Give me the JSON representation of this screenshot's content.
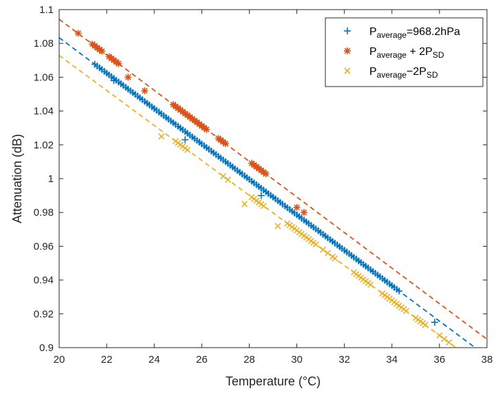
{
  "chart_data": {
    "type": "scatter",
    "title": "",
    "xlabel": "Temperature (°C)",
    "ylabel": "Attenuation (dB)",
    "xlim": [
      20,
      38
    ],
    "ylim": [
      0.9,
      1.1
    ],
    "xticks": [
      "20",
      "22",
      "24",
      "26",
      "28",
      "30",
      "32",
      "34",
      "36",
      "38"
    ],
    "yticks": [
      "0.9",
      "0.92",
      "0.94",
      "0.96",
      "0.98",
      "1",
      "1.02",
      "1.04",
      "1.06",
      "1.08",
      "1.1"
    ],
    "legend_position": "top-right",
    "series": [
      {
        "name": "P_average=968.2hPa",
        "legend": {
          "main": "P",
          "sub": "average",
          "rest": "=968.2hPa",
          "sub2": "",
          "rest2": ""
        },
        "color": "#0072BD",
        "marker": "plus",
        "fit": {
          "x0": 20,
          "y0": 1.0834,
          "x1": 37.5,
          "y1": 0.9
        },
        "segments": [
          [
            21.5,
            34.3,
            0.1
          ]
        ],
        "points": [
          [
            22.3,
            1.058
          ],
          [
            25.3,
            1.023
          ],
          [
            28.5,
            0.99
          ],
          [
            35.8,
            0.915
          ]
        ]
      },
      {
        "name": "P_average + 2P_SD",
        "legend": {
          "main": "P",
          "sub": "average",
          "rest": " + 2P",
          "sub2": "SD",
          "rest2": ""
        },
        "color": "#D95319",
        "marker": "asterisk",
        "fit": {
          "x0": 20,
          "y0": 1.0943,
          "x1": 38,
          "y1": 0.905
        },
        "segments": [
          [
            21.4,
            21.8,
            0.1
          ],
          [
            22.1,
            22.5,
            0.1
          ],
          [
            24.8,
            26.2,
            0.1
          ],
          [
            26.7,
            27.0,
            0.1
          ],
          [
            28.1,
            28.7,
            0.1
          ]
        ],
        "points": [
          [
            20.8,
            1.086
          ],
          [
            22.9,
            1.06
          ],
          [
            23.6,
            1.052
          ],
          [
            30.0,
            0.983
          ],
          [
            30.3,
            0.98
          ]
        ]
      },
      {
        "name": "P_average−2P_SD",
        "legend": {
          "main": "P",
          "sub": "average",
          "rest": "−2P",
          "sub2": "SD",
          "rest2": ""
        },
        "color": "#EDB120",
        "marker": "x",
        "fit": {
          "x0": 20,
          "y0": 1.0729,
          "x1": 36.7,
          "y1": 0.9
        },
        "segments": [
          [
            24.9,
            25.4,
            0.1
          ],
          [
            26.9,
            27.1,
            0.2
          ],
          [
            28.1,
            28.6,
            0.1
          ],
          [
            29.6,
            30.8,
            0.1
          ],
          [
            31.1,
            31.3,
            0.2
          ],
          [
            31.5,
            31.6,
            0.1
          ],
          [
            32.4,
            33.1,
            0.1
          ],
          [
            33.6,
            34.6,
            0.1
          ],
          [
            35.0,
            35.4,
            0.1
          ],
          [
            36.0,
            36.4,
            0.2
          ]
        ],
        "points": [
          [
            24.3,
            1.025
          ],
          [
            27.8,
            0.985
          ],
          [
            29.2,
            0.972
          ]
        ]
      }
    ]
  }
}
